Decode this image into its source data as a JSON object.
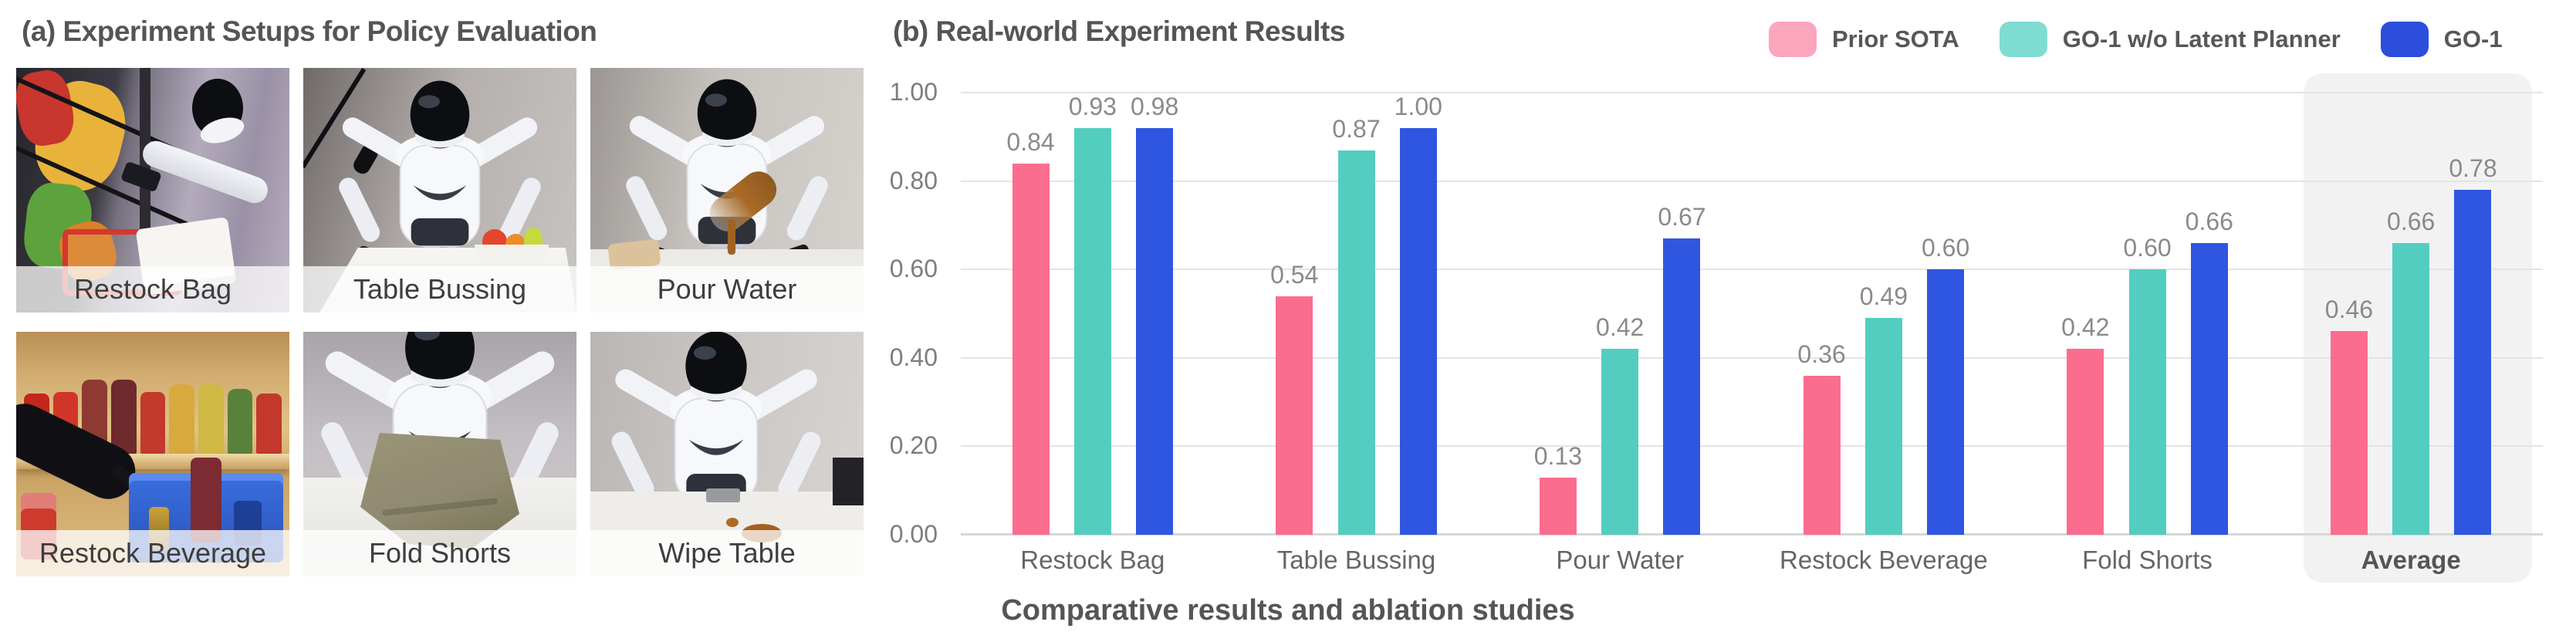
{
  "panel_a": {
    "title": "(a) Experiment Setups for Policy Evaluation",
    "setups": [
      {
        "label": "Restock Bag"
      },
      {
        "label": "Table Bussing"
      },
      {
        "label": "Pour Water"
      },
      {
        "label": "Restock Beverage"
      },
      {
        "label": "Fold Shorts"
      },
      {
        "label": "Wipe Table"
      }
    ]
  },
  "panel_b": {
    "title": "(b) Real-world Experiment Results"
  },
  "caption": "Comparative results and ablation studies",
  "colors": {
    "prior_sota_bar": "#FB6D8F",
    "go1_wo_planner_bar": "#54CDC1",
    "go1_bar": "#2F56E0",
    "prior_sota_legend": "#FBA6BC",
    "go1_wo_planner_legend": "#7EDCD2",
    "go1_legend": "#2B4EDD",
    "gridline": "#E4E4E4",
    "average_highlight": "#F2F2F3"
  },
  "chart_data": {
    "type": "bar",
    "title": "(b) Real-world Experiment Results",
    "categories": [
      "Restock Bag",
      "Table Bussing",
      "Pour Water",
      "Restock Beverage",
      "Fold Shorts",
      "Average"
    ],
    "series": [
      {
        "name": "Prior SOTA",
        "color": "#FB6D8F",
        "legend_color": "#FBA6BC",
        "values": [
          0.84,
          0.54,
          0.13,
          0.36,
          0.42,
          0.46
        ]
      },
      {
        "name": "GO-1 w/o Latent Planner",
        "color": "#54CDC1",
        "legend_color": "#7EDCD2",
        "values": [
          0.93,
          0.87,
          0.42,
          0.49,
          0.6,
          0.66
        ]
      },
      {
        "name": "GO-1",
        "color": "#2F56E0",
        "legend_color": "#2B4EDD",
        "values": [
          0.98,
          1.0,
          0.67,
          0.6,
          0.66,
          0.78
        ]
      }
    ],
    "xlabel": "",
    "ylabel": "",
    "ylim": [
      0,
      1.0
    ],
    "yticks": [
      "0.00",
      "0.20",
      "0.40",
      "0.60",
      "0.80",
      "1.00"
    ],
    "grid": true,
    "legend_position": "top-right",
    "value_labels": true,
    "value_label_format": "2-decimals",
    "highlight_category": "Average",
    "caption": "Comparative results and ablation studies"
  }
}
